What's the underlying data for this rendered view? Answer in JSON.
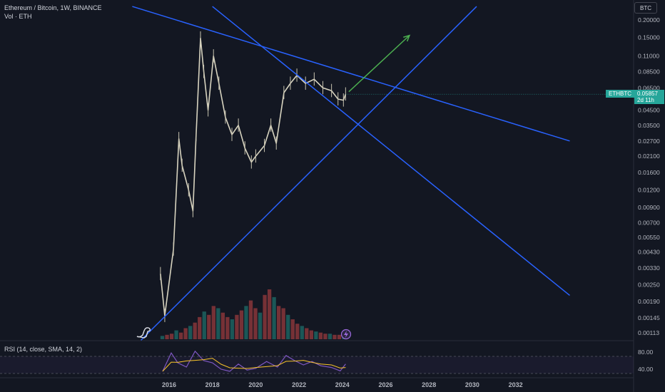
{
  "header": {
    "title": "Ethereum / Bitcoin, 1W, BINANCE",
    "volume_label": "Vol · ETH",
    "rsi_label": "RSI (14, close, SMA, 14, 2)"
  },
  "scale_button": "BTC",
  "price_tag": {
    "symbol": "ETHBTC",
    "price": "0.05857",
    "countdown": "2d 11h"
  },
  "colors": {
    "background": "#131722",
    "trendline": "#2962ff",
    "arrow": "#4caf50",
    "up": "#26a69a",
    "down": "#ef5350",
    "rsi": "#7e57c2",
    "rsi_ma": "#f7c32a"
  },
  "icons": {
    "logo": "dino-icon",
    "alert": "lightning-icon"
  },
  "chart_data": {
    "type": "candlestick",
    "title": "Ethereum / Bitcoin, 1W, BINANCE",
    "y_scale": "log",
    "price_ticks": [
      "0.20000",
      "0.15000",
      "0.11000",
      "0.08500",
      "0.06500",
      "0.04500",
      "0.03500",
      "0.02700",
      "0.02100",
      "0.01600",
      "0.01200",
      "0.00900",
      "0.00700",
      "0.00550",
      "0.00430",
      "0.00330",
      "0.00250",
      "0.00190",
      "0.00145",
      "0.00113"
    ],
    "x_ticks": [
      "2016",
      "2018",
      "2020",
      "2022",
      "2024",
      "2026",
      "2028",
      "2030",
      "2032"
    ],
    "rsi_ticks": [
      "80.00",
      "40.00"
    ],
    "last_price": 0.05857,
    "price_series": [
      {
        "x": 2015.6,
        "y": 0.003
      },
      {
        "x": 2015.8,
        "y": 0.0015
      },
      {
        "x": 2016.2,
        "y": 0.0045
      },
      {
        "x": 2016.45,
        "y": 0.028
      },
      {
        "x": 2016.6,
        "y": 0.018
      },
      {
        "x": 2016.9,
        "y": 0.012
      },
      {
        "x": 2017.1,
        "y": 0.0085
      },
      {
        "x": 2017.25,
        "y": 0.03
      },
      {
        "x": 2017.45,
        "y": 0.148
      },
      {
        "x": 2017.6,
        "y": 0.085
      },
      {
        "x": 2017.8,
        "y": 0.045
      },
      {
        "x": 2018.05,
        "y": 0.11
      },
      {
        "x": 2018.3,
        "y": 0.07
      },
      {
        "x": 2018.6,
        "y": 0.04
      },
      {
        "x": 2018.9,
        "y": 0.03
      },
      {
        "x": 2019.2,
        "y": 0.035
      },
      {
        "x": 2019.5,
        "y": 0.024
      },
      {
        "x": 2019.8,
        "y": 0.019
      },
      {
        "x": 2020.0,
        "y": 0.021
      },
      {
        "x": 2020.4,
        "y": 0.025
      },
      {
        "x": 2020.7,
        "y": 0.035
      },
      {
        "x": 2020.95,
        "y": 0.026
      },
      {
        "x": 2021.3,
        "y": 0.06
      },
      {
        "x": 2021.6,
        "y": 0.07
      },
      {
        "x": 2021.9,
        "y": 0.08
      },
      {
        "x": 2022.3,
        "y": 0.07
      },
      {
        "x": 2022.7,
        "y": 0.075
      },
      {
        "x": 2023.1,
        "y": 0.065
      },
      {
        "x": 2023.5,
        "y": 0.062
      },
      {
        "x": 2023.8,
        "y": 0.054
      },
      {
        "x": 2024.05,
        "y": 0.053
      },
      {
        "x": 2024.15,
        "y": 0.0586
      }
    ],
    "trendlines": [
      {
        "name": "descending",
        "from": {
          "x": 2014.3,
          "y": 0.25
        },
        "to": {
          "x": 2034.5,
          "y": 0.027
        }
      },
      {
        "name": "support",
        "from": {
          "x": 2014.7,
          "y": 0.001
        },
        "to": {
          "x": 2030.2,
          "y": 0.25
        }
      },
      {
        "name": "steep",
        "from": {
          "x": 2018.0,
          "y": 0.25
        },
        "to": {
          "x": 2034.5,
          "y": 0.0021
        }
      }
    ],
    "arrow": {
      "from": {
        "x": 2024.3,
        "y": 0.061
      },
      "to": {
        "x": 2027.1,
        "y": 0.155
      }
    },
    "volume": [
      3,
      4,
      5,
      8,
      6,
      10,
      12,
      15,
      20,
      25,
      22,
      30,
      28,
      24,
      20,
      18,
      22,
      26,
      30,
      35,
      28,
      24,
      40,
      45,
      38,
      30,
      28,
      22,
      18,
      14,
      12,
      10,
      8,
      7,
      6,
      5,
      5,
      4,
      4,
      3
    ],
    "rsi": [
      {
        "x": 2015.7,
        "y": 35
      },
      {
        "x": 2016.1,
        "y": 78
      },
      {
        "x": 2016.4,
        "y": 55
      },
      {
        "x": 2016.8,
        "y": 45
      },
      {
        "x": 2017.2,
        "y": 82
      },
      {
        "x": 2017.6,
        "y": 60
      },
      {
        "x": 2018.0,
        "y": 55
      },
      {
        "x": 2018.4,
        "y": 40
      },
      {
        "x": 2018.8,
        "y": 35
      },
      {
        "x": 2019.2,
        "y": 52
      },
      {
        "x": 2019.6,
        "y": 38
      },
      {
        "x": 2020.0,
        "y": 42
      },
      {
        "x": 2020.5,
        "y": 58
      },
      {
        "x": 2021.0,
        "y": 45
      },
      {
        "x": 2021.4,
        "y": 72
      },
      {
        "x": 2021.8,
        "y": 60
      },
      {
        "x": 2022.2,
        "y": 50
      },
      {
        "x": 2022.6,
        "y": 58
      },
      {
        "x": 2023.0,
        "y": 48
      },
      {
        "x": 2023.5,
        "y": 44
      },
      {
        "x": 2023.9,
        "y": 36
      },
      {
        "x": 2024.15,
        "y": 52
      }
    ]
  }
}
